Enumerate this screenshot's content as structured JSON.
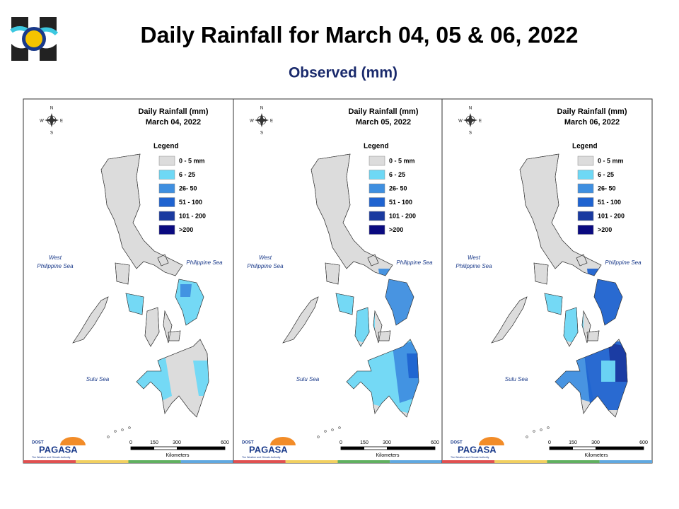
{
  "header": {
    "title": "Daily Rainfall for March 04, 05 & 06, 2022",
    "subtitle": "Observed (mm)"
  },
  "panels": [
    {
      "title": "Daily Rainfall (mm)",
      "date": "March 04, 2022"
    },
    {
      "title": "Daily Rainfall (mm)",
      "date": "March 05, 2022"
    },
    {
      "title": "Daily Rainfall (mm)",
      "date": "March 06, 2022"
    }
  ],
  "legend": {
    "title": "Legend",
    "items": [
      {
        "label": "0 - 5 mm",
        "color": "#dcdcdc"
      },
      {
        "label": "6 - 25",
        "color": "#6ed8f5"
      },
      {
        "label": "26- 50",
        "color": "#3f8fe0"
      },
      {
        "label": "51 - 100",
        "color": "#1f63d0"
      },
      {
        "label": "101 - 200",
        "color": "#1a3aa0"
      },
      {
        "label": ">200",
        "color": "#0a0a80"
      }
    ]
  },
  "labels": {
    "west_sea": [
      "West",
      "Philippine Sea"
    ],
    "philippine_sea": "Philippine Sea",
    "sulu_sea": "Sulu Sea"
  },
  "compass": [
    "N",
    "W",
    "E",
    "S"
  ],
  "scale": {
    "ticks": [
      "0",
      "150",
      "300",
      "600"
    ],
    "unit": "Kilometers"
  },
  "branding": {
    "agency": "DOST",
    "name": "PAGASA",
    "tagline": "The Weather and Climate Authority"
  }
}
